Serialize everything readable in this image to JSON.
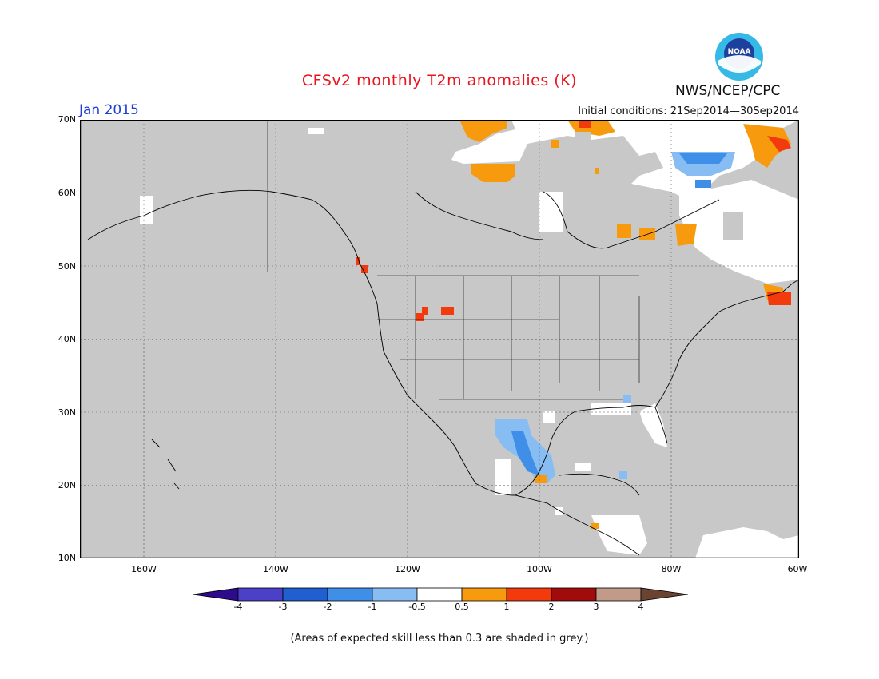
{
  "header": {
    "title": "CFSv2 monthly T2m anomalies (K)",
    "agency": "NWS/NCEP/CPC",
    "month": "Jan 2015",
    "initial_conditions": "Initial conditions: 21Sep2014—30Sep2014",
    "logo_text": "NOAA"
  },
  "map": {
    "lat_labels": [
      "70N",
      "60N",
      "50N",
      "40N",
      "30N",
      "20N",
      "10N"
    ],
    "lon_labels": [
      "160W",
      "140W",
      "120W",
      "100W",
      "80W",
      "60W"
    ],
    "background_color": "#c8c8c8",
    "regions": [
      {
        "name": "northern-canada-cold",
        "category": "-1 to -0.5"
      },
      {
        "name": "mexico-cold",
        "category": "-1 to -0.5"
      },
      {
        "name": "pacific-northwest-warm",
        "category": "1 to 2"
      },
      {
        "name": "nova-scotia-warm",
        "category": "1 to 2"
      },
      {
        "name": "hudson-bay-warm",
        "category": "0.5 to 1"
      }
    ]
  },
  "colorbar": {
    "labels": [
      "-4",
      "-3",
      "-2",
      "-1",
      "-0.5",
      "0.5",
      "1",
      "2",
      "3",
      "4"
    ],
    "colors": [
      "#2d0b8a",
      "#4c3fc8",
      "#1f5fd0",
      "#3f8fe8",
      "#87bdf2",
      "#ffffff",
      "#f79a0e",
      "#f23a0c",
      "#a10b0b",
      "#c29a88",
      "#6b4431"
    ]
  },
  "footnote": "(Areas of expected skill less than 0.3 are shaded in grey.)"
}
